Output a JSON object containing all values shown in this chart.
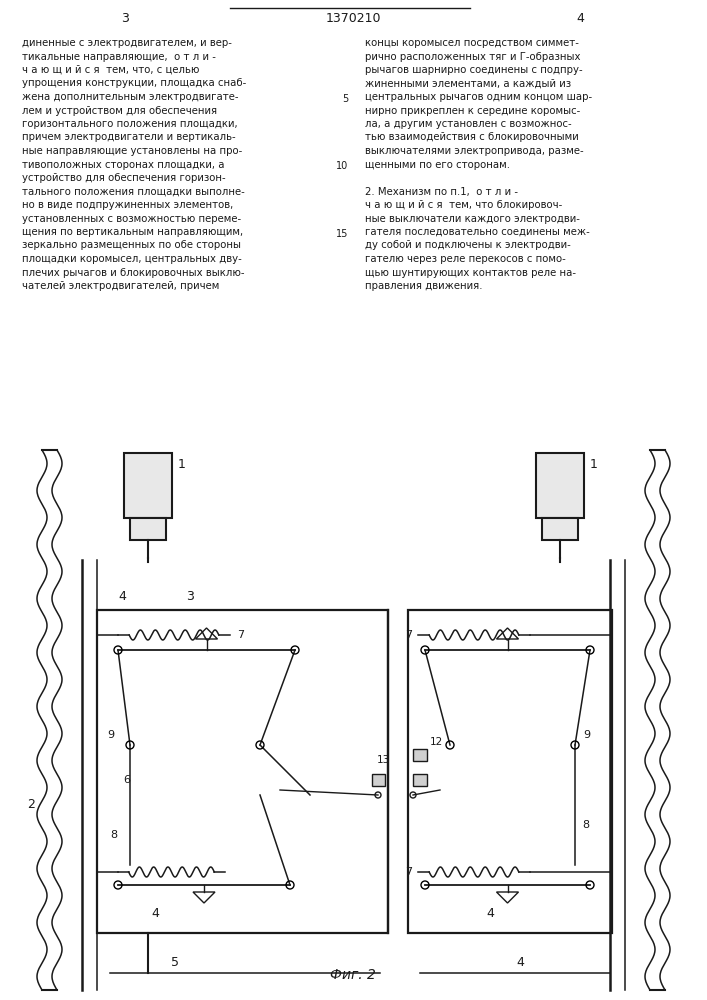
{
  "title": "1370210",
  "page_left": "3",
  "page_right": "4",
  "fig_label": "Фиг. 2",
  "bg_color": "#ffffff",
  "line_color": "#1a1a1a",
  "text_color": "#1a1a1a",
  "left_col_text": [
    "диненные с электродвигателем, и вер-",
    "тикальные направляющие,  о т л и -",
    "ч а ю щ и й с я  тем, что, с целью",
    "упрощения конструкции, площадка снаб-",
    "жена дополнительным электродвигате-",
    "лем и устройством для обеспечения",
    "горизонтального положения площадки,",
    "причем электродвигатели и вертикаль-",
    "ные направляющие установлены на про-",
    "тивоположных сторонах площадки, а",
    "устройство для обеспечения горизон-",
    "тального положения площадки выполне-",
    "но в виде подпружиненных элементов,",
    "установленных с возможностью переме-",
    "щения по вертикальным направляющим,",
    "зеркально размещенных по обе стороны",
    "площадки коромысел, центральных дву-",
    "плечих рычагов и блокировочных выклю-",
    "чателей электродвигателей, причем"
  ],
  "right_col_text": [
    "концы коромысел посредством симмет-",
    "рично расположенных тяг и Г-образных",
    "рычагов шарнирно соединены с подпру-",
    "жиненными элементами, а каждый из",
    "центральных рычагов одним концом шар-",
    "нирно прикреплен к середине коромыс-",
    "ла, а другим установлен с возможнос-",
    "тью взаимодействия с блокировочными",
    "выключателями электропривода, разме-",
    "щенными по его сторонам.",
    "",
    "2. Механизм по п.1,  о т л и -",
    "ч а ю щ и й с я  тем, что блокировоч-",
    "ные выключатели каждого электродви-",
    "гателя последовательно соединены меж-",
    "ду собой и подключены к электродви-",
    "гателю через реле перекосов с помо-",
    "щью шунтирующих контактов реле на-",
    "правления движения."
  ],
  "line_numbers": [
    5,
    10,
    15
  ]
}
